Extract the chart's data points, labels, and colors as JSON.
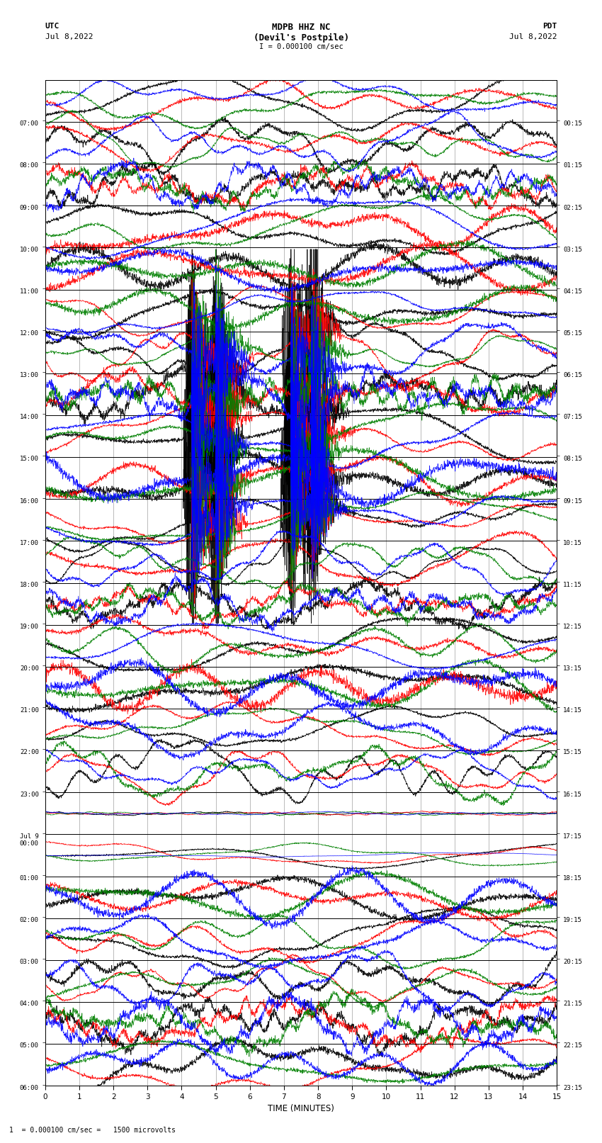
{
  "title_line1": "MDPB HHZ NC",
  "title_line2": "(Devil's Postpile)",
  "scale_text": "I = 0.000100 cm/sec",
  "left_label": "UTC",
  "left_date": "Jul 8,2022",
  "right_label": "PDT",
  "right_date": "Jul 8,2022",
  "bottom_label": "TIME (MINUTES)",
  "bottom_note": "1  = 0.000100 cm/sec =   1500 microvolts",
  "utc_times": [
    "07:00",
    "08:00",
    "09:00",
    "10:00",
    "11:00",
    "12:00",
    "13:00",
    "14:00",
    "15:00",
    "16:00",
    "17:00",
    "18:00",
    "19:00",
    "20:00",
    "21:00",
    "22:00",
    "23:00",
    "Jul 9\n00:00",
    "01:00",
    "02:00",
    "03:00",
    "04:00",
    "05:00",
    "06:00"
  ],
  "pdt_times": [
    "00:15",
    "01:15",
    "02:15",
    "03:15",
    "04:15",
    "05:15",
    "06:15",
    "07:15",
    "08:15",
    "09:15",
    "10:15",
    "11:15",
    "12:15",
    "13:15",
    "14:15",
    "15:15",
    "16:15",
    "17:15",
    "18:15",
    "19:15",
    "20:15",
    "21:15",
    "22:15",
    "23:15"
  ],
  "n_rows": 24,
  "n_minutes": 15,
  "bg_color": "#ffffff",
  "grid_color": "#888888",
  "colors": [
    "black",
    "red",
    "green",
    "blue"
  ],
  "figsize": [
    8.5,
    16.13
  ],
  "dpi": 100,
  "spike_rows": [
    6,
    7,
    8,
    9,
    10
  ],
  "spike_times_main": [
    4.3,
    5.0,
    7.2,
    7.8
  ],
  "spike_times_secondary": [
    4.6,
    5.3,
    7.5
  ]
}
